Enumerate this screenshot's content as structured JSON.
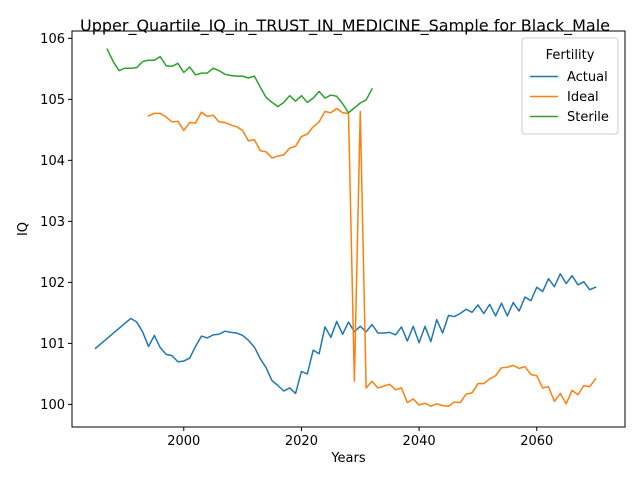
{
  "chart_data": {
    "type": "line",
    "title": "Upper_Quartile_IQ_in_TRUST_IN_MEDICINE_Sample for Black_Male",
    "xlabel": "Years",
    "ylabel": "IQ",
    "xlim": [
      1981,
      2075
    ],
    "ylim": [
      99.63,
      106.12
    ],
    "xticks": [
      2000,
      2020,
      2040,
      2060
    ],
    "yticks": [
      100,
      101,
      102,
      103,
      104,
      105,
      106
    ],
    "grid": false,
    "legend": {
      "title": "Fertility",
      "placement": "upper right"
    },
    "series": [
      {
        "name": "Actual",
        "color": "#1f77b4",
        "points": [
          [
            1985,
            100.92
          ],
          [
            1991,
            101.41
          ],
          [
            1992,
            101.35
          ],
          [
            1993,
            101.19
          ],
          [
            1994,
            100.95
          ],
          [
            1995,
            101.13
          ],
          [
            1996,
            100.93
          ],
          [
            1997,
            100.82
          ],
          [
            1998,
            100.8
          ],
          [
            1999,
            100.7
          ],
          [
            2000,
            100.71
          ],
          [
            2001,
            100.76
          ],
          [
            2002,
            100.95
          ],
          [
            2003,
            101.12
          ],
          [
            2004,
            101.09
          ],
          [
            2005,
            101.14
          ],
          [
            2006,
            101.15
          ],
          [
            2007,
            101.2
          ],
          [
            2008,
            101.18
          ],
          [
            2009,
            101.17
          ],
          [
            2010,
            101.13
          ],
          [
            2011,
            101.05
          ],
          [
            2012,
            100.94
          ],
          [
            2013,
            100.75
          ],
          [
            2014,
            100.6
          ],
          [
            2015,
            100.39
          ],
          [
            2016,
            100.31
          ],
          [
            2017,
            100.22
          ],
          [
            2018,
            100.27
          ],
          [
            2019,
            100.18
          ],
          [
            2020,
            100.54
          ],
          [
            2021,
            100.5
          ],
          [
            2022,
            100.89
          ],
          [
            2023,
            100.83
          ],
          [
            2024,
            101.27
          ],
          [
            2025,
            101.1
          ],
          [
            2026,
            101.36
          ],
          [
            2027,
            101.15
          ],
          [
            2028,
            101.35
          ],
          [
            2029,
            101.19
          ],
          [
            2030,
            101.28
          ],
          [
            2031,
            101.19
          ],
          [
            2032,
            101.31
          ],
          [
            2033,
            101.17
          ],
          [
            2034,
            101.17
          ],
          [
            2035,
            101.18
          ],
          [
            2036,
            101.14
          ],
          [
            2037,
            101.27
          ],
          [
            2038,
            101.04
          ],
          [
            2039,
            101.28
          ],
          [
            2040,
            101.01
          ],
          [
            2041,
            101.28
          ],
          [
            2042,
            101.03
          ],
          [
            2043,
            101.39
          ],
          [
            2044,
            101.17
          ],
          [
            2045,
            101.46
          ],
          [
            2046,
            101.44
          ],
          [
            2047,
            101.49
          ],
          [
            2048,
            101.56
          ],
          [
            2049,
            101.51
          ],
          [
            2050,
            101.63
          ],
          [
            2051,
            101.49
          ],
          [
            2052,
            101.64
          ],
          [
            2053,
            101.45
          ],
          [
            2054,
            101.66
          ],
          [
            2055,
            101.45
          ],
          [
            2056,
            101.67
          ],
          [
            2057,
            101.53
          ],
          [
            2058,
            101.76
          ],
          [
            2059,
            101.7
          ],
          [
            2060,
            101.92
          ],
          [
            2061,
            101.85
          ],
          [
            2062,
            102.06
          ],
          [
            2063,
            101.93
          ],
          [
            2064,
            102.14
          ],
          [
            2065,
            101.98
          ],
          [
            2066,
            102.11
          ],
          [
            2067,
            101.96
          ],
          [
            2068,
            102.01
          ],
          [
            2069,
            101.88
          ],
          [
            2070,
            101.92
          ]
        ]
      },
      {
        "name": "Ideal",
        "color": "#ff7f0e",
        "points": [
          [
            1994,
            104.73
          ],
          [
            1995,
            104.77
          ],
          [
            1996,
            104.77
          ],
          [
            1997,
            104.71
          ],
          [
            1998,
            104.63
          ],
          [
            1999,
            104.64
          ],
          [
            2000,
            104.49
          ],
          [
            2001,
            104.62
          ],
          [
            2002,
            104.61
          ],
          [
            2003,
            104.79
          ],
          [
            2004,
            104.72
          ],
          [
            2005,
            104.74
          ],
          [
            2006,
            104.63
          ],
          [
            2007,
            104.62
          ],
          [
            2008,
            104.58
          ],
          [
            2009,
            104.55
          ],
          [
            2010,
            104.49
          ],
          [
            2011,
            104.32
          ],
          [
            2012,
            104.34
          ],
          [
            2013,
            104.16
          ],
          [
            2014,
            104.14
          ],
          [
            2015,
            104.04
          ],
          [
            2016,
            104.07
          ],
          [
            2017,
            104.09
          ],
          [
            2018,
            104.2
          ],
          [
            2019,
            104.23
          ],
          [
            2020,
            104.39
          ],
          [
            2021,
            104.43
          ],
          [
            2022,
            104.55
          ],
          [
            2023,
            104.63
          ],
          [
            2024,
            104.8
          ],
          [
            2025,
            104.78
          ],
          [
            2026,
            104.85
          ],
          [
            2027,
            104.78
          ],
          [
            2028,
            104.77
          ],
          [
            2029,
            100.38
          ],
          [
            2030,
            104.8
          ],
          [
            2031,
            100.27
          ],
          [
            2032,
            100.38
          ],
          [
            2033,
            100.27
          ],
          [
            2034,
            100.3
          ],
          [
            2035,
            100.33
          ],
          [
            2036,
            100.24
          ],
          [
            2037,
            100.27
          ],
          [
            2038,
            100.03
          ],
          [
            2039,
            100.09
          ],
          [
            2040,
            99.99
          ],
          [
            2041,
            100.02
          ],
          [
            2042,
            99.97
          ],
          [
            2043,
            100.01
          ],
          [
            2044,
            99.98
          ],
          [
            2045,
            99.97
          ],
          [
            2046,
            100.04
          ],
          [
            2047,
            100.03
          ],
          [
            2048,
            100.17
          ],
          [
            2049,
            100.19
          ],
          [
            2050,
            100.34
          ],
          [
            2051,
            100.34
          ],
          [
            2052,
            100.42
          ],
          [
            2053,
            100.47
          ],
          [
            2054,
            100.6
          ],
          [
            2055,
            100.61
          ],
          [
            2056,
            100.64
          ],
          [
            2057,
            100.59
          ],
          [
            2058,
            100.62
          ],
          [
            2059,
            100.49
          ],
          [
            2060,
            100.47
          ],
          [
            2061,
            100.27
          ],
          [
            2062,
            100.29
          ],
          [
            2063,
            100.05
          ],
          [
            2064,
            100.18
          ],
          [
            2065,
            100.01
          ],
          [
            2066,
            100.23
          ],
          [
            2067,
            100.16
          ],
          [
            2068,
            100.31
          ],
          [
            2069,
            100.29
          ],
          [
            2070,
            100.42
          ]
        ]
      },
      {
        "name": "Sterile",
        "color": "#2ca02c",
        "points": [
          [
            1987,
            105.82
          ],
          [
            1988,
            105.62
          ],
          [
            1989,
            105.47
          ],
          [
            1990,
            105.51
          ],
          [
            1991,
            105.51
          ],
          [
            1992,
            105.52
          ],
          [
            1993,
            105.62
          ],
          [
            1994,
            105.64
          ],
          [
            1995,
            105.64
          ],
          [
            1996,
            105.7
          ],
          [
            1997,
            105.55
          ],
          [
            1998,
            105.54
          ],
          [
            1999,
            105.59
          ],
          [
            2000,
            105.44
          ],
          [
            2001,
            105.53
          ],
          [
            2002,
            105.4
          ],
          [
            2003,
            105.43
          ],
          [
            2004,
            105.43
          ],
          [
            2005,
            105.51
          ],
          [
            2006,
            105.47
          ],
          [
            2007,
            105.41
          ],
          [
            2008,
            105.39
          ],
          [
            2009,
            105.38
          ],
          [
            2010,
            105.38
          ],
          [
            2011,
            105.35
          ],
          [
            2012,
            105.38
          ],
          [
            2013,
            105.2
          ],
          [
            2014,
            105.03
          ],
          [
            2015,
            104.95
          ],
          [
            2016,
            104.88
          ],
          [
            2017,
            104.95
          ],
          [
            2018,
            105.06
          ],
          [
            2019,
            104.97
          ],
          [
            2020,
            105.06
          ],
          [
            2021,
            104.95
          ],
          [
            2022,
            105.02
          ],
          [
            2023,
            105.13
          ],
          [
            2024,
            105.02
          ],
          [
            2025,
            105.07
          ],
          [
            2026,
            105.05
          ],
          [
            2027,
            104.93
          ],
          [
            2028,
            104.78
          ],
          [
            2029,
            104.86
          ],
          [
            2030,
            104.94
          ],
          [
            2031,
            104.99
          ],
          [
            2032,
            105.17
          ]
        ]
      }
    ]
  }
}
